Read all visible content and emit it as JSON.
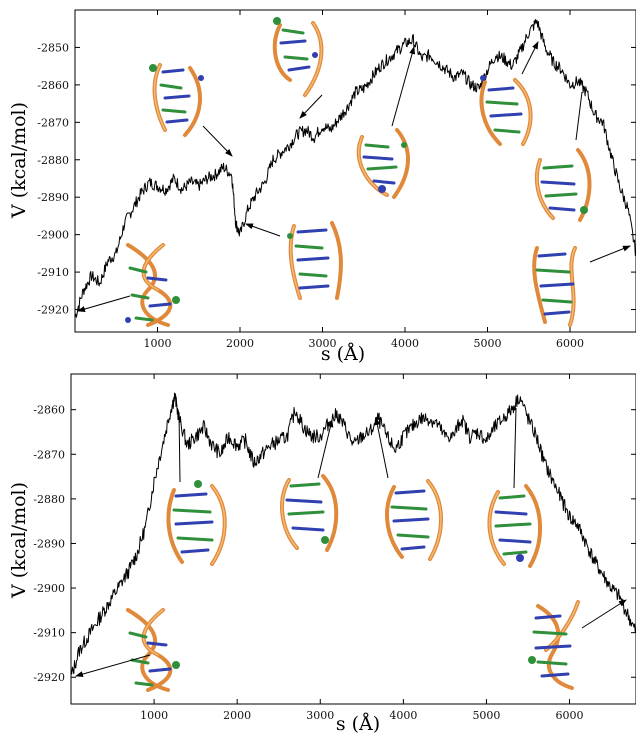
{
  "chart_data": [
    {
      "type": "line",
      "xlabel": "s (Å)",
      "ylabel": "V (kcal/mol)",
      "xlim": [
        0,
        6800
      ],
      "ylim": [
        -2926,
        -2840
      ],
      "xticks": [
        1000,
        2000,
        3000,
        4000,
        5000,
        6000
      ],
      "xtick_labels": [
        "1000",
        "2000",
        "3000",
        "4000",
        "5000",
        "6000"
      ],
      "yticks": [
        -2920,
        -2910,
        -2900,
        -2890,
        -2880,
        -2870,
        -2860,
        -2850
      ],
      "ytick_labels": [
        "-2920",
        "-2910",
        "-2900",
        "-2890",
        "-2880",
        "-2870",
        "-2860",
        "-2850"
      ],
      "grid": false,
      "series": [
        {
          "x": [
            0,
            100,
            200,
            300,
            400,
            500,
            600,
            700,
            800,
            900,
            1000,
            1100,
            1200,
            1300,
            1400,
            1500,
            1600,
            1700,
            1800,
            1900,
            1950,
            2000,
            2100,
            2200,
            2300,
            2400,
            2500,
            2600,
            2700,
            2800,
            2900,
            3000,
            3100,
            3200,
            3300,
            3400,
            3500,
            3600,
            3700,
            3800,
            3900,
            4000,
            4100,
            4200,
            4300,
            4400,
            4500,
            4600,
            4700,
            4800,
            4900,
            5000,
            5100,
            5200,
            5300,
            5400,
            5500,
            5600,
            5700,
            5800,
            5900,
            6000,
            6100,
            6200,
            6300,
            6400,
            6500,
            6600,
            6700,
            6800
          ],
          "y": [
            -2922,
            -2915,
            -2911,
            -2913,
            -2907,
            -2905,
            -2897,
            -2893,
            -2889,
            -2886,
            -2887,
            -2888,
            -2885,
            -2888,
            -2886,
            -2887,
            -2885,
            -2884,
            -2882,
            -2884,
            -2897,
            -2900,
            -2893,
            -2889,
            -2886,
            -2880,
            -2878,
            -2876,
            -2873,
            -2872,
            -2874,
            -2871,
            -2872,
            -2869,
            -2866,
            -2862,
            -2861,
            -2858,
            -2855,
            -2853,
            -2851,
            -2849,
            -2848,
            -2853,
            -2852,
            -2854,
            -2856,
            -2858,
            -2857,
            -2860,
            -2861,
            -2856,
            -2852,
            -2853,
            -2855,
            -2851,
            -2846,
            -2843,
            -2850,
            -2854,
            -2856,
            -2860,
            -2859,
            -2862,
            -2868,
            -2870,
            -2879,
            -2887,
            -2893,
            -2905
          ]
        }
      ]
    },
    {
      "type": "line",
      "xlabel": "s (Å)",
      "ylabel": "V (kcal/mol)",
      "xlim": [
        0,
        6800
      ],
      "ylim": [
        -2926,
        -2852
      ],
      "xticks": [
        1000,
        2000,
        3000,
        4000,
        5000,
        6000
      ],
      "xtick_labels": [
        "1000",
        "2000",
        "3000",
        "4000",
        "5000",
        "6000"
      ],
      "yticks": [
        -2920,
        -2910,
        -2900,
        -2890,
        -2880,
        -2870,
        -2860
      ],
      "ytick_labels": [
        "-2920",
        "-2910",
        "-2900",
        "-2890",
        "-2880",
        "-2870",
        "-2860"
      ],
      "grid": false,
      "series": [
        {
          "x": [
            0,
            100,
            200,
            300,
            400,
            500,
            600,
            700,
            800,
            900,
            1000,
            1100,
            1200,
            1250,
            1300,
            1400,
            1500,
            1600,
            1700,
            1800,
            1900,
            2000,
            2100,
            2200,
            2300,
            2400,
            2500,
            2600,
            2700,
            2800,
            2900,
            3000,
            3100,
            3200,
            3300,
            3400,
            3500,
            3600,
            3700,
            3800,
            3900,
            4000,
            4100,
            4200,
            4300,
            4400,
            4500,
            4600,
            4700,
            4800,
            4900,
            5000,
            5100,
            5200,
            5300,
            5400,
            5500,
            5600,
            5700,
            5800,
            5900,
            6000,
            6100,
            6200,
            6300,
            6400,
            6500,
            6600,
            6700,
            6800
          ],
          "y": [
            -2920,
            -2914,
            -2911,
            -2908,
            -2905,
            -2902,
            -2899,
            -2896,
            -2892,
            -2886,
            -2876,
            -2868,
            -2860,
            -2857,
            -2862,
            -2868,
            -2866,
            -2864,
            -2868,
            -2870,
            -2866,
            -2868,
            -2867,
            -2872,
            -2870,
            -2868,
            -2867,
            -2866,
            -2860,
            -2864,
            -2866,
            -2866,
            -2863,
            -2861,
            -2864,
            -2868,
            -2866,
            -2865,
            -2862,
            -2866,
            -2869,
            -2866,
            -2864,
            -2862,
            -2862,
            -2863,
            -2866,
            -2866,
            -2862,
            -2866,
            -2865,
            -2867,
            -2864,
            -2862,
            -2860,
            -2857,
            -2862,
            -2866,
            -2872,
            -2876,
            -2880,
            -2884,
            -2886,
            -2890,
            -2894,
            -2897,
            -2900,
            -2902,
            -2906,
            -2910
          ]
        }
      ]
    }
  ]
}
